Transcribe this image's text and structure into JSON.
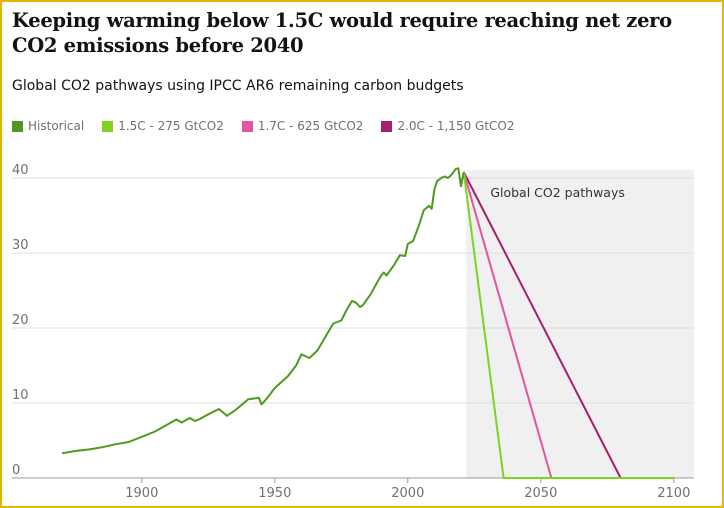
{
  "header": {
    "title": "Keeping warming below 1.5C would require reaching net zero CO2 emissions before 2040",
    "subtitle": "Global CO2 pathways using IPCC AR6 remaining carbon budgets"
  },
  "colors": {
    "historical": "#4e9a1f",
    "p15": "#7ed321",
    "p17": "#e0559e",
    "p20": "#a51f6e",
    "border": "#e8b400",
    "shade": "#f0f0f0"
  },
  "chart_data": {
    "type": "line",
    "title": "Keeping warming below 1.5C would require reaching net zero CO2 emissions before 2040",
    "subtitle": "Global CO2 pathways using IPCC AR6 remaining carbon budgets",
    "xlim": [
      1865,
      2105
    ],
    "ylim": [
      0,
      42
    ],
    "x_ticks": [
      1900,
      1950,
      2000,
      2050,
      2100
    ],
    "y_ticks": [
      0,
      10,
      20,
      30,
      40
    ],
    "grid": "horizontal",
    "legend_position": "top-left",
    "annotation": {
      "text": "Global CO2 pathways",
      "shaded_from_x": 2022,
      "shaded_to_x": 2105
    },
    "series": [
      {
        "name": "Historical",
        "x": [
          1870,
          1875,
          1880,
          1885,
          1890,
          1895,
          1900,
          1905,
          1910,
          1913,
          1915,
          1918,
          1920,
          1922,
          1925,
          1929,
          1932,
          1935,
          1938,
          1940,
          1944,
          1945,
          1947,
          1950,
          1955,
          1958,
          1960,
          1963,
          1966,
          1969,
          1972,
          1975,
          1977,
          1979,
          1980,
          1981,
          1982,
          1983,
          1986,
          1989,
          1990,
          1991,
          1992,
          1995,
          1997,
          1999,
          2000,
          2002,
          2004,
          2006,
          2008,
          2009,
          2010,
          2011,
          2013,
          2014,
          2015,
          2016,
          2017,
          2018,
          2019,
          2020,
          2021
        ],
        "values": [
          3.3,
          3.6,
          3.8,
          4.1,
          4.5,
          4.8,
          5.5,
          6.2,
          7.2,
          7.8,
          7.4,
          8.0,
          7.6,
          7.9,
          8.5,
          9.2,
          8.3,
          9.0,
          9.9,
          10.5,
          10.7,
          9.8,
          10.6,
          12.0,
          13.6,
          15.0,
          16.5,
          16.0,
          17.0,
          18.8,
          20.6,
          21.0,
          22.4,
          23.6,
          23.5,
          23.2,
          22.8,
          23.0,
          24.5,
          26.4,
          27.0,
          27.4,
          27.0,
          28.5,
          29.7,
          29.6,
          31.2,
          31.6,
          33.5,
          35.7,
          36.3,
          35.9,
          38.5,
          39.6,
          40.1,
          40.2,
          40.0,
          40.3,
          40.7,
          41.2,
          41.3,
          38.9,
          40.8
        ]
      },
      {
        "name": "1.5C - 275 GtCO2",
        "x": [
          2021,
          2036,
          2105
        ],
        "values": [
          40.8,
          0,
          0
        ]
      },
      {
        "name": "1.7C - 625 GtCO2",
        "x": [
          2021,
          2054,
          2105
        ],
        "values": [
          40.8,
          0,
          0
        ]
      },
      {
        "name": "2.0C - 1,150 GtCO2",
        "x": [
          2021,
          2080,
          2105
        ],
        "values": [
          40.8,
          0,
          0
        ]
      }
    ]
  }
}
